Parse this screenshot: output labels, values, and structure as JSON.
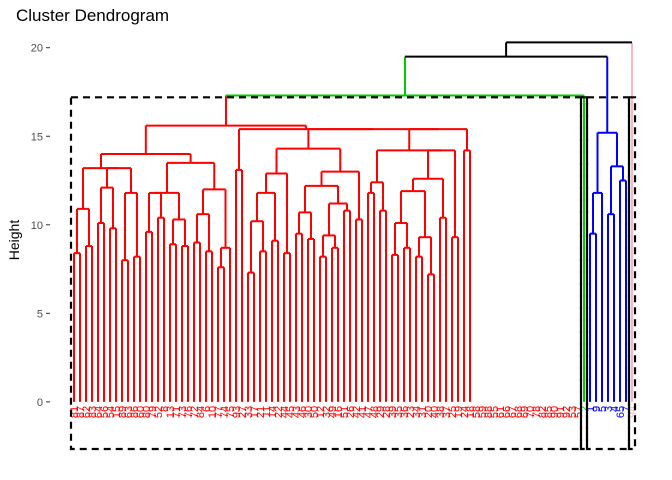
{
  "chart_data": {
    "type": "dendrogram",
    "title": "Cluster Dendrogram",
    "xlabel": "",
    "ylabel": "Height",
    "ylim": [
      -3,
      21
    ],
    "yticks": [
      0,
      5,
      10,
      15,
      20
    ],
    "grid": false,
    "colors": {
      "cluster1": "#ff0000",
      "cluster2": "#00cc00",
      "cluster3": "#0000ff",
      "cluster4": "#ffb6c1",
      "root": "#000000",
      "rect": "#000000"
    },
    "cluster_rects": [
      {
        "from_leaf": 0,
        "to_leaf": 84,
        "height": 17.2
      },
      {
        "from_leaf": 85,
        "to_leaf": 85,
        "height": 17.2
      },
      {
        "from_leaf": 86,
        "to_leaf": 92,
        "height": 17.2
      },
      {
        "from_leaf": 93,
        "to_leaf": 93,
        "height": 17.2
      }
    ],
    "leaves": [
      {
        "label": "81",
        "cluster": 1
      },
      {
        "label": "87",
        "cluster": 1
      },
      {
        "label": "62",
        "cluster": 1
      },
      {
        "label": "83",
        "cluster": 1
      },
      {
        "label": "64",
        "cluster": 1
      },
      {
        "label": "56",
        "cluster": 1
      },
      {
        "label": "54",
        "cluster": 1
      },
      {
        "label": "15",
        "cluster": 1
      },
      {
        "label": "89",
        "cluster": 1
      },
      {
        "label": "63",
        "cluster": 1
      },
      {
        "label": "86",
        "cluster": 1
      },
      {
        "label": "60",
        "cluster": 1
      },
      {
        "label": "80",
        "cluster": 1
      },
      {
        "label": "79",
        "cluster": 1
      },
      {
        "label": "52",
        "cluster": 1
      },
      {
        "label": "8",
        "cluster": 1
      },
      {
        "label": "13",
        "cluster": 1
      },
      {
        "label": "71",
        "cluster": 1
      },
      {
        "label": "73",
        "cluster": 1
      },
      {
        "label": "76",
        "cluster": 1
      },
      {
        "label": "72",
        "cluster": 1
      },
      {
        "label": "84",
        "cluster": 1
      },
      {
        "label": "6",
        "cluster": 1
      },
      {
        "label": "10",
        "cluster": 1
      },
      {
        "label": "77",
        "cluster": 1
      },
      {
        "label": "74",
        "cluster": 1
      },
      {
        "label": "75",
        "cluster": 1
      },
      {
        "label": "93",
        "cluster": 1
      },
      {
        "label": "27",
        "cluster": 1
      },
      {
        "label": "33",
        "cluster": 1
      },
      {
        "label": "17",
        "cluster": 1
      },
      {
        "label": "21",
        "cluster": 1
      },
      {
        "label": "11",
        "cluster": 1
      },
      {
        "label": "14",
        "cluster": 1
      },
      {
        "label": "22",
        "cluster": 1
      },
      {
        "label": "44",
        "cluster": 1
      },
      {
        "label": "45",
        "cluster": 1
      },
      {
        "label": "43",
        "cluster": 1
      },
      {
        "label": "46",
        "cluster": 1
      },
      {
        "label": "30",
        "cluster": 1
      },
      {
        "label": "50",
        "cluster": 1
      },
      {
        "label": "12",
        "cluster": 1
      },
      {
        "label": "32",
        "cluster": 1
      },
      {
        "label": "49",
        "cluster": 1
      },
      {
        "label": "16",
        "cluster": 1
      },
      {
        "label": "51",
        "cluster": 1
      },
      {
        "label": "26",
        "cluster": 1
      },
      {
        "label": "42",
        "cluster": 1
      },
      {
        "label": "41",
        "cluster": 1
      },
      {
        "label": "47",
        "cluster": 1
      },
      {
        "label": "48",
        "cluster": 1
      },
      {
        "label": "29",
        "cluster": 1
      },
      {
        "label": "28",
        "cluster": 1
      },
      {
        "label": "39",
        "cluster": 1
      },
      {
        "label": "35",
        "cluster": 1
      },
      {
        "label": "36",
        "cluster": 1
      },
      {
        "label": "23",
        "cluster": 1
      },
      {
        "label": "34",
        "cluster": 1
      },
      {
        "label": "31",
        "cluster": 1
      },
      {
        "label": "20",
        "cluster": 1
      },
      {
        "label": "40",
        "cluster": 1
      },
      {
        "label": "38",
        "cluster": 1
      },
      {
        "label": "37",
        "cluster": 1
      },
      {
        "label": "25",
        "cluster": 1
      },
      {
        "label": "19",
        "cluster": 1
      },
      {
        "label": "24",
        "cluster": 1
      },
      {
        "label": "18",
        "cluster": 1
      },
      {
        "label": "58",
        "cluster": 1
      },
      {
        "label": "59",
        "cluster": 1
      },
      {
        "label": "88",
        "cluster": 1
      },
      {
        "label": "55",
        "cluster": 1
      },
      {
        "label": "61",
        "cluster": 1
      },
      {
        "label": "66",
        "cluster": 1
      },
      {
        "label": "67",
        "cluster": 1
      },
      {
        "label": "68",
        "cluster": 1
      },
      {
        "label": "69",
        "cluster": 1
      },
      {
        "label": "70",
        "cluster": 1
      },
      {
        "label": "78",
        "cluster": 1
      },
      {
        "label": "82",
        "cluster": 1
      },
      {
        "label": "85",
        "cluster": 1
      },
      {
        "label": "90",
        "cluster": 1
      },
      {
        "label": "91",
        "cluster": 1
      },
      {
        "label": "92",
        "cluster": 1
      },
      {
        "label": "53",
        "cluster": 1
      },
      {
        "label": "57",
        "cluster": 1
      },
      {
        "label": "2",
        "cluster": 2
      },
      {
        "label": "1",
        "cluster": 3
      },
      {
        "label": "9",
        "cluster": 3
      },
      {
        "label": "5",
        "cluster": 3
      },
      {
        "label": "3",
        "cluster": 3
      },
      {
        "label": "4",
        "cluster": 3
      },
      {
        "label": "65",
        "cluster": 3
      },
      {
        "label": "7",
        "cluster": 3
      },
      {
        "label": "94",
        "cluster": 4
      }
    ],
    "merges": [
      {
        "a": 0,
        "b": 1,
        "h": 8.4,
        "cluster": 1
      },
      {
        "a": 2,
        "b": 3,
        "h": 8.8,
        "cluster": 1
      },
      {
        "a": "m0",
        "b": "m1",
        "h": 10.9,
        "cluster": 1
      },
      {
        "a": 4,
        "b": 5,
        "h": 10.1,
        "cluster": 1
      },
      {
        "a": 6,
        "b": 7,
        "h": 9.8,
        "cluster": 1
      },
      {
        "a": "m3",
        "b": "m4",
        "h": 12.1,
        "cluster": 1
      },
      {
        "a": 8,
        "b": 9,
        "h": 8.0,
        "cluster": 1
      },
      {
        "a": 10,
        "b": 11,
        "h": 8.2,
        "cluster": 1
      },
      {
        "a": "m6",
        "b": "m7",
        "h": 11.8,
        "cluster": 1
      },
      {
        "a": "m5",
        "b": "m8",
        "h": 13.2,
        "cluster": 1
      },
      {
        "a": "m2",
        "b": "m9",
        "h": 13.2,
        "cluster": 1
      },
      {
        "a": 12,
        "b": 13,
        "h": 9.6,
        "cluster": 1
      },
      {
        "a": 14,
        "b": 15,
        "h": 10.4,
        "cluster": 1
      },
      {
        "a": 16,
        "b": 17,
        "h": 8.9,
        "cluster": 1
      },
      {
        "a": 18,
        "b": 19,
        "h": 8.8,
        "cluster": 1
      },
      {
        "a": "m13",
        "b": "m14",
        "h": 10.3,
        "cluster": 1
      },
      {
        "a": "m11",
        "b": "m12",
        "h": 11.8,
        "cluster": 1
      },
      {
        "a": "m15",
        "b": "m16",
        "h": 11.8,
        "cluster": 1
      },
      {
        "a": 20,
        "b": 21,
        "h": 9.0,
        "cluster": 1
      },
      {
        "a": 22,
        "b": 23,
        "h": 8.5,
        "cluster": 1
      },
      {
        "a": "m18",
        "b": "m19",
        "h": 10.6,
        "cluster": 1
      },
      {
        "a": 24,
        "b": 25,
        "h": 7.6,
        "cluster": 1
      },
      {
        "a": "m21",
        "b": 26,
        "h": 8.7,
        "cluster": 1
      },
      {
        "a": "m20",
        "b": "m22",
        "h": 12.0,
        "cluster": 1
      },
      {
        "a": "m17",
        "b": "m23",
        "h": 13.5,
        "cluster": 1
      },
      {
        "a": "m10",
        "b": "m24",
        "h": 14.0,
        "cluster": 1
      },
      {
        "a": 27,
        "b": 28,
        "h": 13.1,
        "cluster": 1
      },
      {
        "a": 29,
        "b": 30,
        "h": 7.3,
        "cluster": 1
      },
      {
        "a": 31,
        "b": 32,
        "h": 8.5,
        "cluster": 1
      },
      {
        "a": "m27",
        "b": "m28",
        "h": 10.2,
        "cluster": 1
      },
      {
        "a": 33,
        "b": 34,
        "h": 9.1,
        "cluster": 1
      },
      {
        "a": "m29",
        "b": "m30",
        "h": 11.8,
        "cluster": 1
      },
      {
        "a": 35,
        "b": 36,
        "h": 8.4,
        "cluster": 1
      },
      {
        "a": "m31",
        "b": "m32",
        "h": 12.9,
        "cluster": 1
      },
      {
        "a": 37,
        "b": 38,
        "h": 9.5,
        "cluster": 1
      },
      {
        "a": 39,
        "b": 40,
        "h": 9.2,
        "cluster": 1
      },
      {
        "a": "m34",
        "b": "m35",
        "h": 10.7,
        "cluster": 1
      },
      {
        "a": 41,
        "b": 42,
        "h": 8.2,
        "cluster": 1
      },
      {
        "a": 43,
        "b": 44,
        "h": 8.7,
        "cluster": 1
      },
      {
        "a": "m37",
        "b": "m38",
        "h": 9.4,
        "cluster": 1
      },
      {
        "a": 45,
        "b": 46,
        "h": 10.8,
        "cluster": 1
      },
      {
        "a": "m39",
        "b": "m40",
        "h": 11.2,
        "cluster": 1
      },
      {
        "a": "m36",
        "b": "m41",
        "h": 12.2,
        "cluster": 1
      },
      {
        "a": 47,
        "b": 48,
        "h": 10.3,
        "cluster": 1
      },
      {
        "a": "m42",
        "b": "m43",
        "h": 13.0,
        "cluster": 1
      },
      {
        "a": "m33",
        "b": "m44",
        "h": 14.3,
        "cluster": 1
      },
      {
        "a": 49,
        "b": 50,
        "h": 11.8,
        "cluster": 1
      },
      {
        "a": 51,
        "b": 52,
        "h": 10.8,
        "cluster": 1
      },
      {
        "a": "m46",
        "b": "m47",
        "h": 12.4,
        "cluster": 1
      },
      {
        "a": 53,
        "b": 54,
        "h": 8.3,
        "cluster": 1
      },
      {
        "a": 55,
        "b": 56,
        "h": 8.7,
        "cluster": 1
      },
      {
        "a": "m49",
        "b": "m50",
        "h": 10.1,
        "cluster": 1
      },
      {
        "a": 57,
        "b": 58,
        "h": 8.2,
        "cluster": 1
      },
      {
        "a": 59,
        "b": 60,
        "h": 7.2,
        "cluster": 1
      },
      {
        "a": "m52",
        "b": "m53",
        "h": 9.3,
        "cluster": 1
      },
      {
        "a": "m51",
        "b": "m54",
        "h": 11.9,
        "cluster": 1
      },
      {
        "a": 61,
        "b": 62,
        "h": 10.4,
        "cluster": 1
      },
      {
        "a": "m55",
        "b": "m56",
        "h": 12.6,
        "cluster": 1
      },
      {
        "a": 63,
        "b": 64,
        "h": 9.3,
        "cluster": 1
      },
      {
        "a": "m57",
        "b": "m58",
        "h": 14.2,
        "cluster": 1
      },
      {
        "a": "m48",
        "b": "m59",
        "h": 14.2,
        "cluster": 1
      },
      {
        "a": 65,
        "b": 66,
        "h": 14.2,
        "cluster": 1
      },
      {
        "a": "m60",
        "b": "m61",
        "h": 15.4,
        "cluster": 1
      },
      {
        "a": "m45",
        "b": "m62",
        "h": 15.4,
        "cluster": 1
      },
      {
        "a": "m26",
        "b": "m63",
        "h": 15.4,
        "cluster": 1
      },
      {
        "a": "m25",
        "b": "m64",
        "h": 15.6,
        "cluster": 1
      },
      {
        "a": 86,
        "b": 87,
        "h": 9.5,
        "cluster": 3
      },
      {
        "a": 88,
        "b": "m66",
        "h": 11.8,
        "cluster": 3
      },
      {
        "a": 89,
        "b": 90,
        "h": 10.6,
        "cluster": 3
      },
      {
        "a": 91,
        "b": 92,
        "h": 12.5,
        "cluster": 3
      },
      {
        "a": "m68",
        "b": "m69",
        "h": 13.3,
        "cluster": 3
      },
      {
        "a": "m67",
        "b": "m70",
        "h": 15.2,
        "cluster": 3
      },
      {
        "a": "m65",
        "b": 85,
        "h": 17.3,
        "cluster": 2
      },
      {
        "a": "m72",
        "b": "m71",
        "h": 19.5,
        "cluster": 0
      },
      {
        "a": "m73",
        "b": 93,
        "h": 20.3,
        "cluster": 0
      }
    ]
  }
}
